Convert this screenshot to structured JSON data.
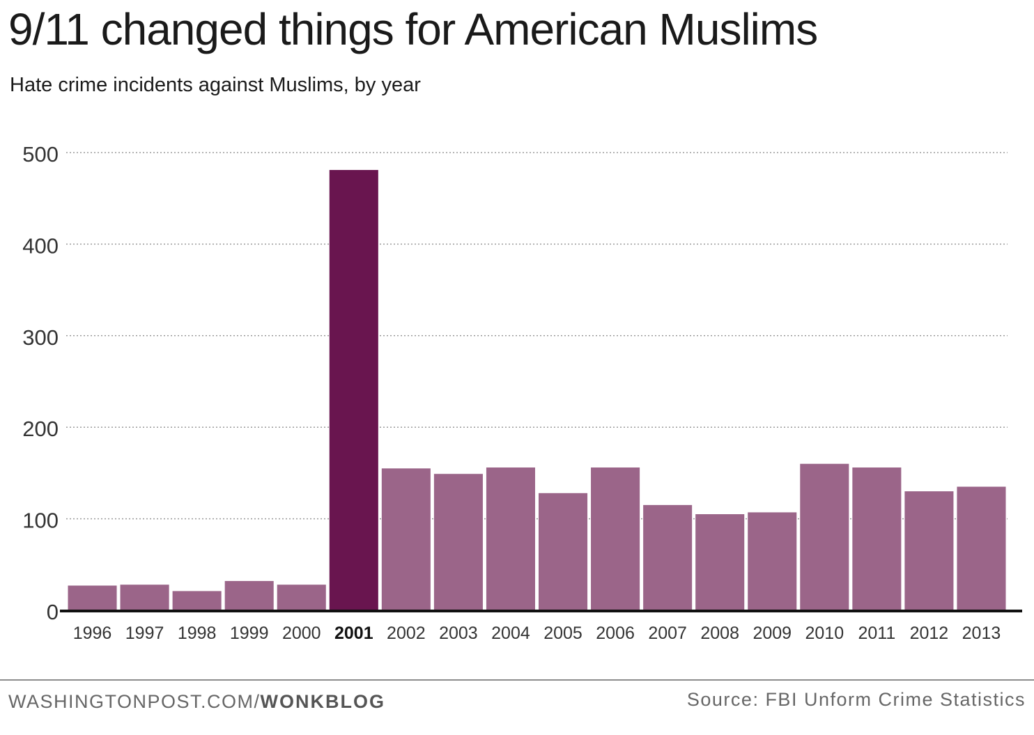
{
  "chart_data": {
    "type": "bar",
    "title": "9/11 changed things for American Muslims",
    "subtitle": "Hate crime incidents against Muslims, by year",
    "categories": [
      "1996",
      "1997",
      "1998",
      "1999",
      "2000",
      "2001",
      "2002",
      "2003",
      "2004",
      "2005",
      "2006",
      "2007",
      "2008",
      "2009",
      "2010",
      "2011",
      "2012",
      "2013"
    ],
    "values": [
      27,
      28,
      21,
      32,
      28,
      481,
      155,
      149,
      156,
      128,
      156,
      115,
      105,
      107,
      160,
      156,
      130,
      135
    ],
    "highlight_category": "2001",
    "yticks": [
      0,
      100,
      200,
      300,
      400,
      500
    ],
    "ylim": [
      0,
      500
    ],
    "xlabel": "",
    "ylabel": "",
    "grid": true,
    "colors": {
      "bar": "#9b6589",
      "highlight": "#69154f",
      "grid": "#9a9a9a",
      "axis": "#111111",
      "tick_text": "#333333"
    }
  },
  "footer": {
    "credit_prefix": "WASHINGTONPOST.COM/",
    "credit_bold": "WONKBLOG",
    "source": "Source: FBI Unform Crime Statistics"
  }
}
